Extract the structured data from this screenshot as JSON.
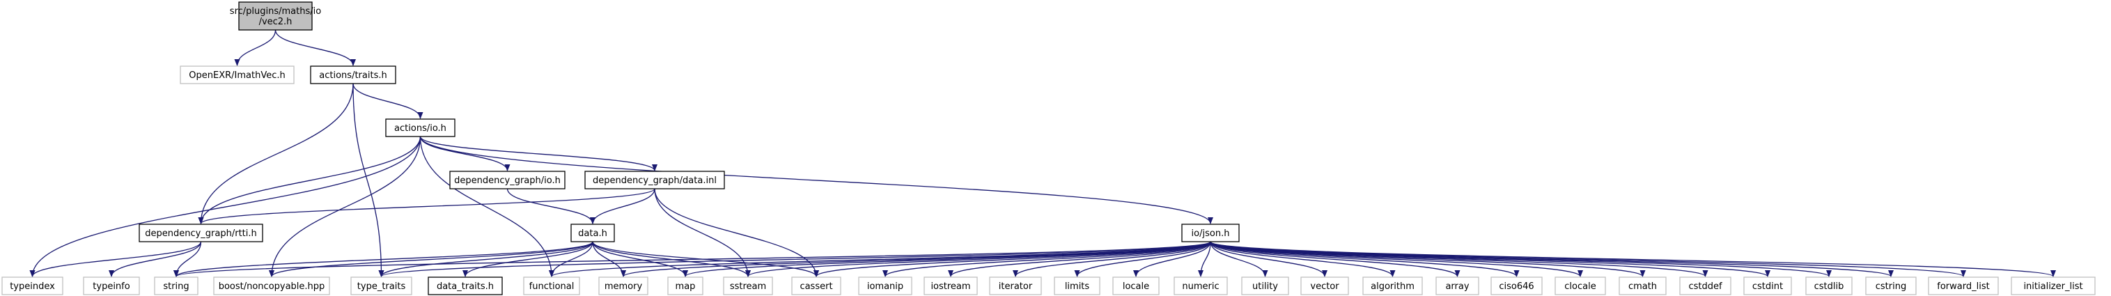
{
  "colors": {
    "edge": "#191970",
    "border_normal": "#000000",
    "border_external": "#bfbfbf",
    "fill_root": "#bfbfbf",
    "fill_normal": "#ffffff",
    "text": "#000000"
  },
  "nodes": [
    {
      "id": "root",
      "lines": [
        "src/plugins/maths/io",
        "/vec2.h"
      ],
      "kind": "root"
    },
    {
      "id": "openexr",
      "lines": [
        "OpenEXR/ImathVec.h"
      ],
      "kind": "external"
    },
    {
      "id": "traits",
      "lines": [
        "actions/traits.h"
      ],
      "kind": "normal"
    },
    {
      "id": "actions_io",
      "lines": [
        "actions/io.h"
      ],
      "kind": "normal"
    },
    {
      "id": "dg_io",
      "lines": [
        "dependency_graph/io.h"
      ],
      "kind": "normal"
    },
    {
      "id": "dg_data_inl",
      "lines": [
        "dependency_graph/data.inl"
      ],
      "kind": "normal"
    },
    {
      "id": "rtti",
      "lines": [
        "dependency_graph/rtti.h"
      ],
      "kind": "normal"
    },
    {
      "id": "data_h",
      "lines": [
        "data.h"
      ],
      "kind": "normal"
    },
    {
      "id": "json",
      "lines": [
        "io/json.h"
      ],
      "kind": "normal"
    },
    {
      "id": "typeindex",
      "lines": [
        "typeindex"
      ],
      "kind": "external"
    },
    {
      "id": "typeinfo",
      "lines": [
        "typeinfo"
      ],
      "kind": "external"
    },
    {
      "id": "string",
      "lines": [
        "string"
      ],
      "kind": "external"
    },
    {
      "id": "noncopyable",
      "lines": [
        "boost/noncopyable.hpp"
      ],
      "kind": "external"
    },
    {
      "id": "type_traits",
      "lines": [
        "type_traits"
      ],
      "kind": "external"
    },
    {
      "id": "data_traits",
      "lines": [
        "data_traits.h"
      ],
      "kind": "normal"
    },
    {
      "id": "functional",
      "lines": [
        "functional"
      ],
      "kind": "external"
    },
    {
      "id": "memory",
      "lines": [
        "memory"
      ],
      "kind": "external"
    },
    {
      "id": "map",
      "lines": [
        "map"
      ],
      "kind": "external"
    },
    {
      "id": "sstream",
      "lines": [
        "sstream"
      ],
      "kind": "external"
    },
    {
      "id": "cassert",
      "lines": [
        "cassert"
      ],
      "kind": "external"
    },
    {
      "id": "iomanip",
      "lines": [
        "iomanip"
      ],
      "kind": "external"
    },
    {
      "id": "iostream",
      "lines": [
        "iostream"
      ],
      "kind": "external"
    },
    {
      "id": "iterator",
      "lines": [
        "iterator"
      ],
      "kind": "external"
    },
    {
      "id": "limits",
      "lines": [
        "limits"
      ],
      "kind": "external"
    },
    {
      "id": "locale",
      "lines": [
        "locale"
      ],
      "kind": "external"
    },
    {
      "id": "numeric",
      "lines": [
        "numeric"
      ],
      "kind": "external"
    },
    {
      "id": "utility",
      "lines": [
        "utility"
      ],
      "kind": "external"
    },
    {
      "id": "vector",
      "lines": [
        "vector"
      ],
      "kind": "external"
    },
    {
      "id": "algorithm",
      "lines": [
        "algorithm"
      ],
      "kind": "external"
    },
    {
      "id": "array",
      "lines": [
        "array"
      ],
      "kind": "external"
    },
    {
      "id": "ciso646",
      "lines": [
        "ciso646"
      ],
      "kind": "external"
    },
    {
      "id": "clocale",
      "lines": [
        "clocale"
      ],
      "kind": "external"
    },
    {
      "id": "cmath",
      "lines": [
        "cmath"
      ],
      "kind": "external"
    },
    {
      "id": "cstddef",
      "lines": [
        "cstddef"
      ],
      "kind": "external"
    },
    {
      "id": "cstdint",
      "lines": [
        "cstdint"
      ],
      "kind": "external"
    },
    {
      "id": "cstdlib",
      "lines": [
        "cstdlib"
      ],
      "kind": "external"
    },
    {
      "id": "cstring",
      "lines": [
        "cstring"
      ],
      "kind": "external"
    },
    {
      "id": "forward_list",
      "lines": [
        "forward_list"
      ],
      "kind": "external"
    },
    {
      "id": "initializer_list",
      "lines": [
        "initializer_list"
      ],
      "kind": "external"
    }
  ],
  "edges": [
    [
      "root",
      "openexr"
    ],
    [
      "root",
      "traits"
    ],
    [
      "traits",
      "actions_io"
    ],
    [
      "traits",
      "rtti"
    ],
    [
      "traits",
      "type_traits"
    ],
    [
      "actions_io",
      "dg_io"
    ],
    [
      "actions_io",
      "dg_data_inl"
    ],
    [
      "actions_io",
      "rtti"
    ],
    [
      "actions_io",
      "json"
    ],
    [
      "actions_io",
      "typeindex"
    ],
    [
      "actions_io",
      "noncopyable"
    ],
    [
      "actions_io",
      "functional"
    ],
    [
      "dg_io",
      "data_h"
    ],
    [
      "dg_data_inl",
      "rtti"
    ],
    [
      "dg_data_inl",
      "data_h"
    ],
    [
      "dg_data_inl",
      "sstream"
    ],
    [
      "dg_data_inl",
      "cassert"
    ],
    [
      "rtti",
      "typeindex"
    ],
    [
      "rtti",
      "typeinfo"
    ],
    [
      "rtti",
      "string"
    ],
    [
      "data_h",
      "string"
    ],
    [
      "data_h",
      "noncopyable"
    ],
    [
      "data_h",
      "type_traits"
    ],
    [
      "data_h",
      "data_traits"
    ],
    [
      "data_h",
      "functional"
    ],
    [
      "data_h",
      "memory"
    ],
    [
      "data_h",
      "map"
    ],
    [
      "data_h",
      "sstream"
    ],
    [
      "data_h",
      "cassert"
    ],
    [
      "json",
      "string"
    ],
    [
      "json",
      "type_traits"
    ],
    [
      "json",
      "functional"
    ],
    [
      "json",
      "memory"
    ],
    [
      "json",
      "map"
    ],
    [
      "json",
      "sstream"
    ],
    [
      "json",
      "cassert"
    ],
    [
      "json",
      "iomanip"
    ],
    [
      "json",
      "iostream"
    ],
    [
      "json",
      "iterator"
    ],
    [
      "json",
      "limits"
    ],
    [
      "json",
      "locale"
    ],
    [
      "json",
      "numeric"
    ],
    [
      "json",
      "utility"
    ],
    [
      "json",
      "vector"
    ],
    [
      "json",
      "algorithm"
    ],
    [
      "json",
      "array"
    ],
    [
      "json",
      "ciso646"
    ],
    [
      "json",
      "clocale"
    ],
    [
      "json",
      "cmath"
    ],
    [
      "json",
      "cstddef"
    ],
    [
      "json",
      "cstdint"
    ],
    [
      "json",
      "cstdlib"
    ],
    [
      "json",
      "cstring"
    ],
    [
      "json",
      "forward_list"
    ],
    [
      "json",
      "initializer_list"
    ]
  ]
}
